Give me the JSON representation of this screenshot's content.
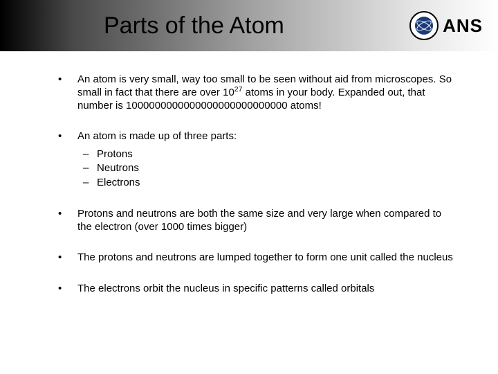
{
  "header": {
    "title": "Parts of the Atom",
    "logo_org": "ANS",
    "logo_colors": {
      "ring": "#000000",
      "inner": "#1a3a7a"
    }
  },
  "bullets": [
    {
      "text_pre": "An atom is very small, way too small to be seen without aid from microscopes. So small in fact that there are over 10",
      "sup": "27",
      "text_post": " atoms in your body. Expanded out, that number is 1000000000000000000000000000 atoms!"
    },
    {
      "text": "An atom is made up of three parts:",
      "sub": [
        "Protons",
        "Neutrons",
        "Electrons"
      ]
    },
    {
      "text": "Protons and neutrons are both the same size and very large when compared to the electron (over 1000 times bigger)"
    },
    {
      "text": "The protons and neutrons are lumped together to form one unit called the nucleus"
    },
    {
      "text": "The electrons orbit the nucleus in specific patterns called orbitals"
    }
  ]
}
